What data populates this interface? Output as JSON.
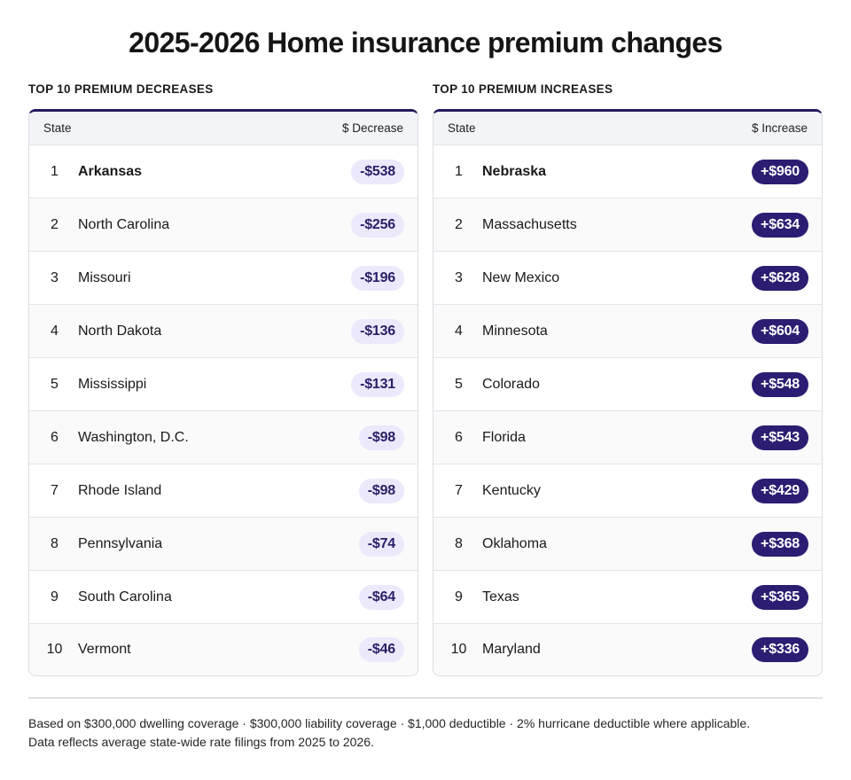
{
  "title": "2025-2026 Home insurance premium changes",
  "decreases": {
    "heading": "TOP 10 PREMIUM DECREASES",
    "col_state": "State",
    "col_value": "$ Decrease",
    "rows": [
      {
        "rank": "1",
        "state": "Arkansas",
        "value": "-$538"
      },
      {
        "rank": "2",
        "state": "North Carolina",
        "value": "-$256"
      },
      {
        "rank": "3",
        "state": "Missouri",
        "value": "-$196"
      },
      {
        "rank": "4",
        "state": "North Dakota",
        "value": "-$136"
      },
      {
        "rank": "5",
        "state": "Mississippi",
        "value": "-$131"
      },
      {
        "rank": "6",
        "state": "Washington, D.C.",
        "value": "-$98"
      },
      {
        "rank": "7",
        "state": "Rhode Island",
        "value": "-$98"
      },
      {
        "rank": "8",
        "state": "Pennsylvania",
        "value": "-$74"
      },
      {
        "rank": "9",
        "state": "South Carolina",
        "value": "-$64"
      },
      {
        "rank": "10",
        "state": "Vermont",
        "value": "-$46"
      }
    ]
  },
  "increases": {
    "heading": "TOP 10 PREMIUM INCREASES",
    "col_state": "State",
    "col_value": "$ Increase",
    "rows": [
      {
        "rank": "1",
        "state": "Nebraska",
        "value": "+$960"
      },
      {
        "rank": "2",
        "state": "Massachusetts",
        "value": "+$634"
      },
      {
        "rank": "3",
        "state": "New Mexico",
        "value": "+$628"
      },
      {
        "rank": "4",
        "state": "Minnesota",
        "value": "+$604"
      },
      {
        "rank": "5",
        "state": "Colorado",
        "value": "+$548"
      },
      {
        "rank": "6",
        "state": "Florida",
        "value": "+$543"
      },
      {
        "rank": "7",
        "state": "Kentucky",
        "value": "+$429"
      },
      {
        "rank": "8",
        "state": "Oklahoma",
        "value": "+$368"
      },
      {
        "rank": "9",
        "state": "Texas",
        "value": "+$365"
      },
      {
        "rank": "10",
        "state": "Maryland",
        "value": "+$336"
      }
    ]
  },
  "footnote": {
    "line1": "Based on $300,000 dwelling coverage · $300,000 liability coverage · $1,000 deductible · 2% hurricane deductible where applicable.",
    "line2": "Data reflects average state-wide rate filings from 2025 to 2026."
  },
  "colors": {
    "accent": "#241a5e",
    "increase_pill": "#2c1d72",
    "decrease_pill": "#ebe9fb"
  }
}
